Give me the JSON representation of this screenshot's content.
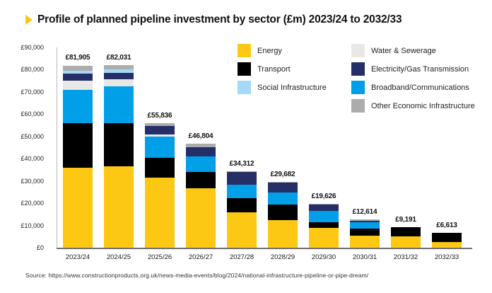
{
  "title": {
    "text": "Profile of planned pipeline investment by sector (£m) 2023/24 to 2032/33"
  },
  "source": "Source: https://www.constructionproducts.org.uk/news-media-events/blog/2024/national-infrastructure-pipeline-or-pipe-dream/",
  "colors": {
    "energy": "#FCC813",
    "transport": "#000000",
    "social": "#A6D9F7",
    "water": "#E9E8E5",
    "electricity_gas": "#252E66",
    "broadband": "#009FE8",
    "other": "#ACACAC",
    "title_arrow": "#FDC513",
    "axis_line": "#B9B9B9",
    "baseline": "#6E6E6E"
  },
  "legend": {
    "left_column": [
      {
        "key": "energy",
        "label": "Energy"
      },
      {
        "key": "transport",
        "label": "Transport"
      },
      {
        "key": "social",
        "label": "Social Infrastructure"
      }
    ],
    "right_column": [
      {
        "key": "water",
        "label": "Water & Sewerage"
      },
      {
        "key": "electricity_gas",
        "label": "Electricity/Gas Transmission"
      },
      {
        "key": "broadband",
        "label": "Broadband/Communications"
      },
      {
        "key": "other",
        "label": "Other Economic Infrastructure"
      }
    ]
  },
  "axis": {
    "y_ticks": [
      "£90,000",
      "£80,000",
      "£70,000",
      "£60,000",
      "£50,000",
      "£40,000",
      "£30,000",
      "£20,000",
      "£10,000",
      "£0"
    ],
    "ymax": 90000
  },
  "chart_data": {
    "type": "bar",
    "stacked": true,
    "title": "Profile of planned pipeline investment by sector (£m) 2023/24 to 2032/33",
    "categories": [
      "2023/24",
      "2024/25",
      "2025/26",
      "2026/27",
      "2027/28",
      "2028/29",
      "2029/30",
      "2030/31",
      "2031/32",
      "2032/33"
    ],
    "ylim": [
      0,
      90000
    ],
    "grid": false,
    "legend_position": "top-right inside plot",
    "stack_order_bottom_to_top": [
      "energy",
      "transport",
      "broadband",
      "water",
      "electricity_gas",
      "social",
      "other"
    ],
    "series": [
      {
        "key": "energy",
        "name": "Energy",
        "color": "#FCC813",
        "values": [
          35800,
          36450,
          31350,
          26830,
          16030,
          12320,
          8950,
          5460,
          5240,
          2480
        ]
      },
      {
        "key": "transport",
        "name": "Transport",
        "color": "#000000",
        "values": [
          20100,
          19600,
          9050,
          7210,
          6350,
          7210,
          2640,
          3180,
          3951,
          4133
        ]
      },
      {
        "key": "broadband",
        "name": "Broadband/Communications",
        "color": "#009FE8",
        "values": [
          15100,
          16600,
          9500,
          6860,
          5810,
          5300,
          4980,
          2730,
          0,
          0
        ]
      },
      {
        "key": "water",
        "name": "Water & Sewerage",
        "color": "#E9E8E5",
        "values": [
          3950,
          3000,
          850,
          200,
          150,
          120,
          100,
          0,
          0,
          0
        ]
      },
      {
        "key": "electricity_gas",
        "name": "Electricity/Gas Transmission",
        "color": "#252E66",
        "values": [
          3200,
          2850,
          3900,
          4030,
          5570,
          4430,
          2856,
          634,
          0,
          0
        ]
      },
      {
        "key": "social",
        "name": "Social Infrastructure",
        "color": "#A6D9F7",
        "values": [
          1350,
          1760,
          150,
          100,
          100,
          0,
          0,
          0,
          0,
          0
        ]
      },
      {
        "key": "other",
        "name": "Other Economic Infrastructure",
        "color": "#ACACAC",
        "values": [
          2405,
          1771,
          1036,
          1574,
          302,
          302,
          100,
          610,
          0,
          0
        ]
      }
    ],
    "totals": [
      81905,
      82031,
      55836,
      46804,
      34312,
      29682,
      19626,
      12614,
      9191,
      6613
    ],
    "total_labels": [
      "£81,905",
      "£82,031",
      "£55,836",
      "£46,804",
      "£34,312",
      "£29,682",
      "£19,626",
      "£12,614",
      "£9,191",
      "£6,613"
    ]
  }
}
